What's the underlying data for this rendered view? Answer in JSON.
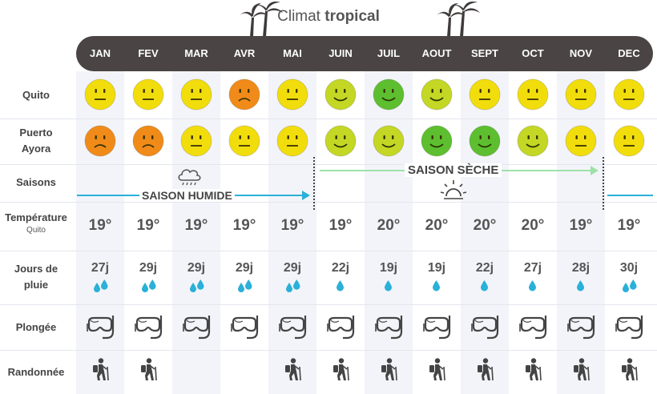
{
  "title": {
    "prefix": "Climat ",
    "bold": "tropical"
  },
  "months": [
    "JAN",
    "FEV",
    "MAR",
    "AVR",
    "MAI",
    "JUIN",
    "JUIL",
    "AOUT",
    "SEPT",
    "OCT",
    "NOV",
    "DEC"
  ],
  "rows": {
    "quito": "Quito",
    "puerto_ayora_line1": "Puerto",
    "puerto_ayora_line2": "Ayora",
    "saisons": "Saisons",
    "temperature": "Température",
    "temperature_sub": "Quito",
    "jours_line1": "Jours de",
    "jours_line2": "pluie",
    "plongee": "Plongée",
    "randonnee": "Randonnée"
  },
  "seasons": {
    "wet": "SAISON HUMIDE",
    "dry": "SAISON SÈCHE"
  },
  "quito_ratings": [
    "neutral",
    "neutral",
    "neutral",
    "sad",
    "neutral",
    "happy-light",
    "happy",
    "happy-light",
    "neutral",
    "neutral",
    "neutral",
    "neutral"
  ],
  "puerto_ayora_ratings": [
    "sad",
    "sad",
    "neutral",
    "neutral",
    "neutral",
    "happy-light",
    "happy-light",
    "happy",
    "happy",
    "happy-light",
    "neutral",
    "neutral"
  ],
  "temperatures": [
    "19°",
    "19°",
    "19°",
    "19°",
    "19°",
    "19°",
    "20°",
    "20°",
    "20°",
    "20°",
    "19°",
    "19°"
  ],
  "rain_days": [
    "27j",
    "29j",
    "29j",
    "29j",
    "29j",
    "22j",
    "19j",
    "19j",
    "22j",
    "27j",
    "28j",
    "30j"
  ],
  "rain_drops": [
    2,
    2,
    2,
    2,
    2,
    1,
    1,
    1,
    1,
    1,
    1,
    2
  ],
  "diving": [
    true,
    true,
    true,
    true,
    true,
    true,
    true,
    true,
    true,
    true,
    true,
    true
  ],
  "hiking": [
    true,
    true,
    false,
    false,
    true,
    true,
    true,
    true,
    true,
    true,
    true,
    true
  ],
  "colors": {
    "bar": "#4a4444",
    "shade": "#f3f4f9",
    "wet_line": "#2ab0d9",
    "dry_line": "#9ee1a8",
    "drop": "#2ab0d9",
    "neutral": "#f2dd0c",
    "sad": "#f08b19",
    "happy": "#5dbf2f",
    "happy-light": "#c3d724"
  },
  "icons": {
    "palm": "palm-tree-icon",
    "cloud": "rain-cloud-icon",
    "sun": "sun-icon",
    "drop": "water-drop-icon",
    "mask": "diving-mask-icon",
    "hiker": "hiker-icon"
  }
}
